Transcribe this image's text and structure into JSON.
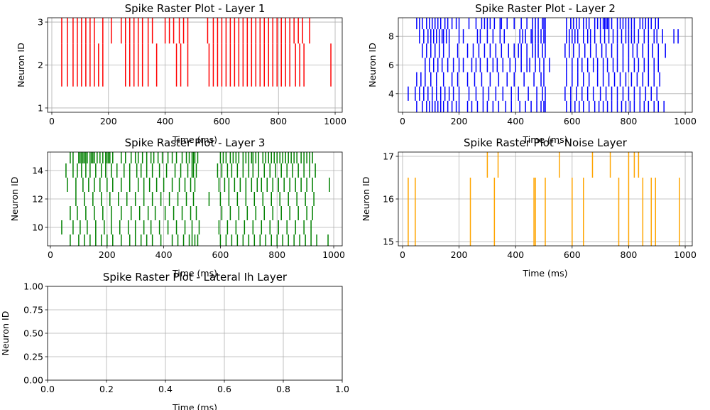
{
  "figure": {
    "background": "#ffffff",
    "grid_color": "#b0b0b0"
  },
  "chart_data": [
    {
      "type": "scatter",
      "mark": "vertical-tick",
      "title": "Spike Raster Plot - Layer 1",
      "xlabel": "Time (ms)",
      "ylabel": "Neuron ID",
      "xlim": [
        -15,
        1025
      ],
      "ylim": [
        0.9,
        3.1
      ],
      "xticks": [
        0,
        200,
        400,
        600,
        800,
        1000
      ],
      "xtick_labels": [
        "0",
        "200",
        "400",
        "600",
        "800",
        "1000"
      ],
      "yticks": [
        1,
        2,
        3
      ],
      "ytick_labels": [
        "1",
        "2",
        "3"
      ],
      "grid": true,
      "color": "#ff0000",
      "spikes": [
        {
          "neuron": 3,
          "times": [
            35,
            55,
            75,
            90,
            105,
            120,
            135,
            150,
            180,
            210,
            245,
            260,
            275,
            290,
            305,
            320,
            340,
            355,
            400,
            415,
            430,
            450,
            465,
            480,
            550,
            570,
            585,
            600,
            615,
            630,
            645,
            660,
            675,
            690,
            705,
            720,
            735,
            750,
            765,
            780,
            795,
            810,
            825,
            840,
            855,
            870,
            885,
            910
          ]
        },
        {
          "neuron": 2,
          "times": [
            35,
            55,
            75,
            90,
            105,
            120,
            135,
            150,
            165,
            180,
            260,
            275,
            290,
            305,
            320,
            340,
            370,
            440,
            455,
            480,
            555,
            570,
            585,
            600,
            615,
            630,
            645,
            660,
            675,
            690,
            705,
            720,
            735,
            750,
            765,
            780,
            795,
            810,
            825,
            840,
            860,
            875,
            890,
            985
          ]
        }
      ]
    },
    {
      "type": "scatter",
      "mark": "vertical-tick",
      "title": "Spike Raster Plot - Layer 2",
      "xlabel": "Time (ms)",
      "ylabel": "Neuron ID",
      "xlim": [
        -15,
        1025
      ],
      "ylim": [
        2.7,
        9.3
      ],
      "xticks": [
        0,
        200,
        400,
        600,
        800,
        1000
      ],
      "xtick_labels": [
        "0",
        "200",
        "400",
        "600",
        "800",
        "1000"
      ],
      "yticks": [
        4,
        6,
        8
      ],
      "ytick_labels": [
        "4",
        "6",
        "8"
      ],
      "grid": true,
      "color": "#0000ff",
      "spikes": [
        {
          "neuron": 9,
          "times": [
            50,
            60,
            70,
            85,
            95,
            105,
            115,
            125,
            135,
            150,
            160,
            175,
            190,
            200,
            235,
            260,
            280,
            290,
            300,
            310,
            325,
            345,
            350,
            370,
            395,
            420,
            440,
            460,
            470,
            480,
            495,
            500,
            505,
            580,
            595,
            605,
            615,
            625,
            640,
            650,
            660,
            680,
            690,
            700,
            710,
            715,
            720,
            725,
            730,
            740,
            760,
            770,
            780,
            790,
            800,
            810,
            820,
            840,
            850,
            860,
            870,
            880,
            895,
            905
          ]
        },
        {
          "neuron": 8,
          "times": [
            60,
            75,
            90,
            100,
            110,
            120,
            130,
            140,
            145,
            155,
            165,
            200,
            215,
            265,
            275,
            300,
            320,
            345,
            360,
            415,
            425,
            435,
            455,
            460,
            470,
            480,
            490,
            500,
            505,
            580,
            590,
            600,
            610,
            620,
            640,
            655,
            665,
            680,
            700,
            715,
            730,
            745,
            760,
            775,
            790,
            800,
            810,
            820,
            835,
            855,
            870,
            890,
            900,
            920,
            960,
            975
          ]
        },
        {
          "neuron": 7,
          "times": [
            70,
            85,
            100,
            115,
            130,
            145,
            165,
            195,
            230,
            250,
            270,
            290,
            310,
            330,
            350,
            375,
            395,
            410,
            420,
            440,
            460,
            470,
            480,
            495,
            505,
            575,
            590,
            605,
            625,
            645,
            665,
            685,
            705,
            720,
            740,
            760,
            780,
            800,
            815,
            830,
            850,
            870,
            885,
            905,
            930
          ]
        },
        {
          "neuron": 6,
          "times": [
            80,
            95,
            110,
            125,
            140,
            160,
            180,
            200,
            215,
            245,
            260,
            275,
            300,
            320,
            335,
            355,
            380,
            400,
            420,
            440,
            450,
            470,
            485,
            500,
            520,
            580,
            600,
            620,
            635,
            655,
            675,
            690,
            710,
            725,
            745,
            760,
            780,
            800,
            820,
            835,
            855,
            870,
            890,
            905
          ]
        },
        {
          "neuron": 5,
          "times": [
            50,
            65,
            80,
            100,
            120,
            145,
            175,
            195,
            230,
            255,
            280,
            310,
            340,
            370,
            395,
            430,
            465,
            490,
            500,
            580,
            600,
            620,
            640,
            660,
            690,
            710,
            730,
            750,
            770,
            790,
            810,
            830,
            850,
            870,
            890,
            910
          ]
        },
        {
          "neuron": 4,
          "times": [
            20,
            45,
            60,
            75,
            90,
            105,
            120,
            135,
            150,
            165,
            180,
            200,
            235,
            260,
            285,
            305,
            330,
            355,
            385,
            410,
            445,
            475,
            495,
            505,
            575,
            595,
            615,
            635,
            655,
            675,
            700,
            720,
            740,
            760,
            780,
            800,
            820,
            840,
            860,
            880,
            900
          ]
        },
        {
          "neuron": 3,
          "times": [
            50,
            70,
            85,
            95,
            105,
            115,
            125,
            135,
            145,
            160,
            175,
            190,
            200,
            230,
            245,
            265,
            285,
            300,
            320,
            340,
            365,
            385,
            415,
            435,
            455,
            475,
            490,
            500,
            505,
            580,
            595,
            610,
            625,
            640,
            660,
            680,
            695,
            710,
            725,
            740,
            760,
            775,
            790,
            805,
            820,
            840,
            855,
            870,
            890,
            905,
            925
          ]
        }
      ]
    },
    {
      "type": "scatter",
      "mark": "vertical-tick",
      "title": "Spike Raster Plot - Layer 3",
      "xlabel": "Time (ms)",
      "ylabel": "Neuron ID",
      "xlim": [
        -10,
        1030
      ],
      "ylim": [
        8.7,
        15.3
      ],
      "xticks": [
        0,
        200,
        400,
        600,
        800,
        1000
      ],
      "xtick_labels": [
        "0",
        "200",
        "400",
        "600",
        "800",
        "1000"
      ],
      "yticks": [
        10,
        12,
        14
      ],
      "ytick_labels": [
        "10",
        "12",
        "14"
      ],
      "grid": true,
      "color": "#008000",
      "spikes": [
        {
          "neuron": 15,
          "times": [
            70,
            80,
            100,
            105,
            110,
            115,
            120,
            125,
            130,
            140,
            145,
            150,
            155,
            165,
            175,
            185,
            195,
            200,
            205,
            210,
            220,
            250,
            265,
            285,
            300,
            310,
            325,
            340,
            355,
            365,
            380,
            395,
            415,
            430,
            445,
            465,
            480,
            490,
            500,
            505,
            510,
            520,
            600,
            610,
            620,
            635,
            645,
            655,
            665,
            680,
            690,
            700,
            710,
            715,
            725,
            735,
            750,
            760,
            770,
            780,
            790,
            800,
            810,
            820,
            830,
            840,
            850,
            860,
            870,
            885,
            895,
            905,
            915,
            925
          ]
        },
        {
          "neuron": 14,
          "times": [
            55,
            80,
            95,
            110,
            125,
            140,
            160,
            180,
            195,
            215,
            235,
            260,
            280,
            305,
            320,
            340,
            360,
            385,
            410,
            440,
            460,
            485,
            500,
            505,
            515,
            590,
            605,
            625,
            640,
            660,
            680,
            700,
            715,
            735,
            755,
            775,
            795,
            815,
            835,
            855,
            875,
            895,
            915,
            935
          ]
        },
        {
          "neuron": 13,
          "times": [
            60,
            90,
            115,
            135,
            155,
            175,
            200,
            220,
            250,
            280,
            310,
            330,
            350,
            375,
            400,
            430,
            455,
            475,
            495,
            510,
            595,
            615,
            630,
            650,
            670,
            690,
            710,
            730,
            745,
            765,
            785,
            805,
            825,
            845,
            865,
            885,
            905,
            925,
            985
          ]
        },
        {
          "neuron": 12,
          "times": [
            90,
            120,
            150,
            180,
            210,
            240,
            270,
            300,
            330,
            360,
            390,
            420,
            450,
            480,
            505,
            560,
            600,
            630,
            660,
            690,
            720,
            750,
            780,
            810,
            840,
            870,
            900,
            930
          ]
        },
        {
          "neuron": 11,
          "times": [
            70,
            95,
            125,
            155,
            185,
            215,
            250,
            285,
            315,
            345,
            370,
            405,
            435,
            465,
            495,
            515,
            605,
            635,
            665,
            695,
            725,
            755,
            785,
            815,
            845,
            875,
            905,
            925
          ]
        },
        {
          "neuron": 10,
          "times": [
            40,
            80,
            105,
            130,
            160,
            190,
            215,
            245,
            275,
            300,
            330,
            355,
            385,
            415,
            445,
            475,
            500,
            525,
            595,
            625,
            655,
            685,
            715,
            745,
            775,
            805,
            835,
            865,
            895,
            920
          ]
        },
        {
          "neuron": 9,
          "times": [
            70,
            100,
            120,
            140,
            160,
            180,
            200,
            220,
            250,
            280,
            300,
            320,
            340,
            360,
            390,
            430,
            450,
            470,
            490,
            500,
            510,
            520,
            600,
            620,
            640,
            660,
            680,
            700,
            720,
            740,
            760,
            780,
            800,
            820,
            840,
            860,
            880,
            900,
            920,
            940,
            980
          ]
        }
      ]
    },
    {
      "type": "scatter",
      "mark": "vertical-tick",
      "title": "Spike Raster Plot - Noise Layer",
      "xlabel": "Time (ms)",
      "ylabel": "Neuron ID",
      "xlim": [
        -15,
        1025
      ],
      "ylim": [
        14.9,
        17.1
      ],
      "xticks": [
        0,
        200,
        400,
        600,
        800,
        1000
      ],
      "xtick_labels": [
        "0",
        "200",
        "400",
        "600",
        "800",
        "1000"
      ],
      "yticks": [
        15,
        16,
        17
      ],
      "ytick_labels": [
        "15",
        "16",
        "17"
      ],
      "grid": true,
      "color": "#ffa500",
      "spikes": [
        {
          "neuron": 17,
          "times": [
            300,
            338,
            555,
            672,
            735,
            800,
            820,
            835
          ]
        },
        {
          "neuron": 16,
          "times": [
            20,
            45,
            240,
            325,
            465,
            470,
            505,
            600,
            640,
            765,
            800,
            850,
            880,
            895,
            980
          ]
        },
        {
          "neuron": 15,
          "times": [
            20,
            45,
            240,
            325,
            465,
            470,
            505,
            600,
            640,
            765,
            800,
            850,
            880,
            895,
            980
          ]
        }
      ]
    },
    {
      "type": "scatter",
      "mark": "vertical-tick",
      "title": "Spike Raster Plot - Lateral Ih Layer",
      "xlabel": "Time (ms)",
      "ylabel": "Neuron ID",
      "xlim": [
        0,
        1
      ],
      "ylim": [
        0,
        1
      ],
      "xticks": [
        0,
        0.2,
        0.4,
        0.6,
        0.8,
        1.0
      ],
      "xtick_labels": [
        "0.0",
        "0.2",
        "0.4",
        "0.6",
        "0.8",
        "1.0"
      ],
      "yticks": [
        0,
        0.25,
        0.5,
        0.75,
        1.0
      ],
      "ytick_labels": [
        "0.00",
        "0.25",
        "0.50",
        "0.75",
        "1.00"
      ],
      "grid": true,
      "color": "#000000",
      "spikes": []
    }
  ]
}
